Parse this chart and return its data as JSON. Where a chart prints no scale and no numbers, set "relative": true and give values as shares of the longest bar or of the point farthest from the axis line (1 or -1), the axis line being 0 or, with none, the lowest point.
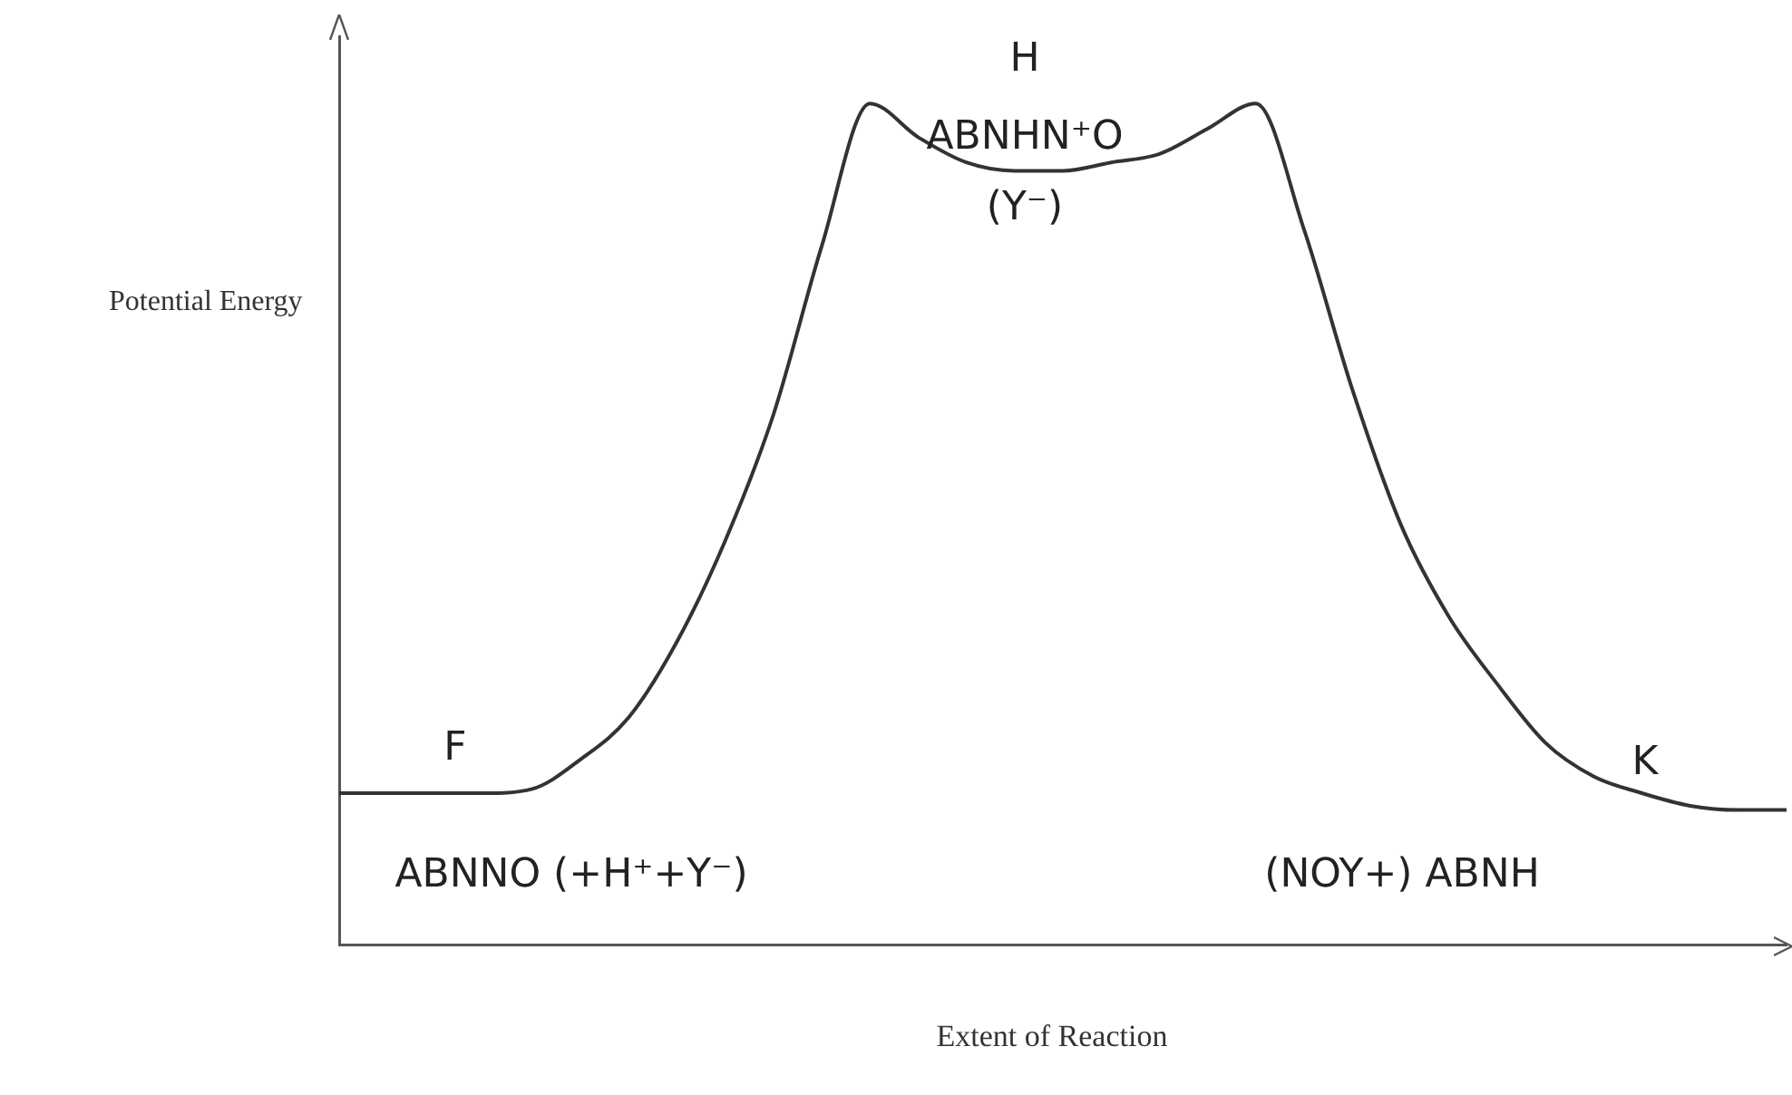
{
  "chart_data": {
    "type": "line",
    "relative": true,
    "xlabel": "Extent of Reaction",
    "ylabel": "Potential Energy",
    "color": "#333333",
    "marker": "none",
    "grid": false,
    "legend": false,
    "categories": [
      null,
      null,
      null,
      null,
      null,
      null,
      null,
      null,
      null,
      null,
      null,
      null,
      null,
      null,
      null,
      null,
      null,
      null,
      null,
      null,
      null,
      null,
      null,
      null,
      null,
      null,
      null,
      null,
      null,
      null,
      null
    ],
    "values": [
      0.18,
      0.18,
      0.18,
      0.18,
      0.185,
      0.22,
      0.27,
      0.36,
      0.48,
      0.63,
      0.83,
      1.0,
      0.96,
      0.93,
      0.92,
      0.92,
      0.93,
      0.94,
      0.97,
      1.0,
      0.85,
      0.66,
      0.5,
      0.39,
      0.31,
      0.24,
      0.2,
      0.18,
      0.165,
      0.16,
      0.16
    ],
    "annotations": [
      "F",
      "ABNNO (+H⁺+Y⁻)",
      "H",
      "ABNHN⁺O",
      "(Y⁻)",
      "K",
      "(NOY+)  ABNH"
    ]
  }
}
